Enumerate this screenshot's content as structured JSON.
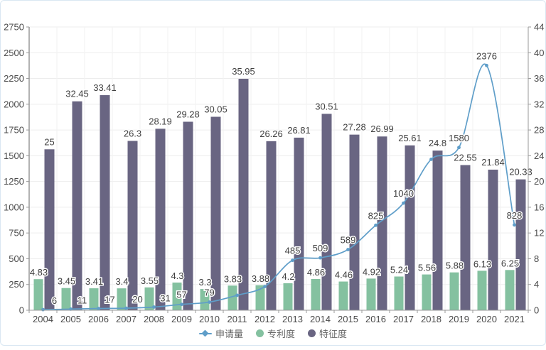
{
  "chart_data": {
    "type": "bar+line combo",
    "categories": [
      "2004",
      "2005",
      "2006",
      "2007",
      "2008",
      "2009",
      "2010",
      "2011",
      "2012",
      "2013",
      "2014",
      "2015",
      "2016",
      "2017",
      "2018",
      "2019",
      "2020",
      "2021"
    ],
    "series": [
      {
        "name": "申请量",
        "type": "line",
        "y_axis": "left",
        "color": "#5F9EC9",
        "values": [
          6,
          11,
          17,
          20,
          31,
          57,
          79,
          145,
          230,
          485,
          509,
          589,
          825,
          1040,
          1465,
          1580,
          2376,
          828
        ],
        "labels": [
          "6",
          "11",
          "17",
          "20",
          "31",
          "57",
          "79",
          "",
          "",
          "485",
          "509",
          "589",
          "825",
          "1040",
          "",
          "1580",
          "2376",
          "828"
        ]
      },
      {
        "name": "专利度",
        "type": "bar",
        "y_axis": "right",
        "color": "#84C1A0",
        "values": [
          4.83,
          3.45,
          3.41,
          3.4,
          3.55,
          4.3,
          3.3,
          3.83,
          3.88,
          4.2,
          4.86,
          4.46,
          4.92,
          5.24,
          5.56,
          5.88,
          6.13,
          6.25
        ],
        "labels": [
          "4.83",
          "3.45",
          "3.41",
          "3.4",
          "3.55",
          "4.3",
          "3.3",
          "3.83",
          "3.88",
          "4.2",
          "4.86",
          "4.46",
          "4.92",
          "5.24",
          "5.56",
          "5.88",
          "6.13",
          "6.25"
        ]
      },
      {
        "name": "特征度",
        "type": "bar",
        "y_axis": "right",
        "color": "#696582",
        "values": [
          25,
          32.45,
          33.41,
          26.3,
          28.19,
          29.28,
          30.05,
          35.95,
          26.26,
          26.81,
          30.51,
          27.28,
          26.99,
          25.61,
          24.8,
          22.55,
          21.84,
          20.33
        ],
        "labels": [
          "25",
          "32.45",
          "33.41",
          "26.3",
          "28.19",
          "29.28",
          "30.05",
          "35.95",
          "26.26",
          "26.81",
          "30.51",
          "27.28",
          "26.99",
          "25.61",
          "24.8",
          "22.55",
          "21.84",
          "20.33"
        ]
      }
    ],
    "left_axis": {
      "min": 0,
      "max": 2750,
      "tick_interval": 250,
      "tick_labels": [
        "0",
        "250",
        "500",
        "750",
        "1000",
        "1250",
        "1500",
        "1750",
        "2000",
        "2250",
        "2500",
        "2750"
      ]
    },
    "right_axis": {
      "min": 0,
      "max": 44,
      "tick_interval": 4,
      "tick_labels": [
        "0",
        "4",
        "8",
        "12",
        "16",
        "20",
        "24",
        "28",
        "32",
        "36",
        "40",
        "44"
      ]
    },
    "legend_position": "bottom",
    "grid": true
  },
  "colors": {
    "line": "#5F9EC9",
    "bar_green": "#84C1A0",
    "bar_dark": "#696582",
    "grid_line": "#EDEDED",
    "grid_line_vertical": "#F2F2F2",
    "axis_line": "#999999",
    "left_axis_line": "#666666",
    "value_text": "#404040",
    "tick_text": "#4A4A4A",
    "legend_text": "#666666",
    "card_border": "#D9E7F2"
  }
}
